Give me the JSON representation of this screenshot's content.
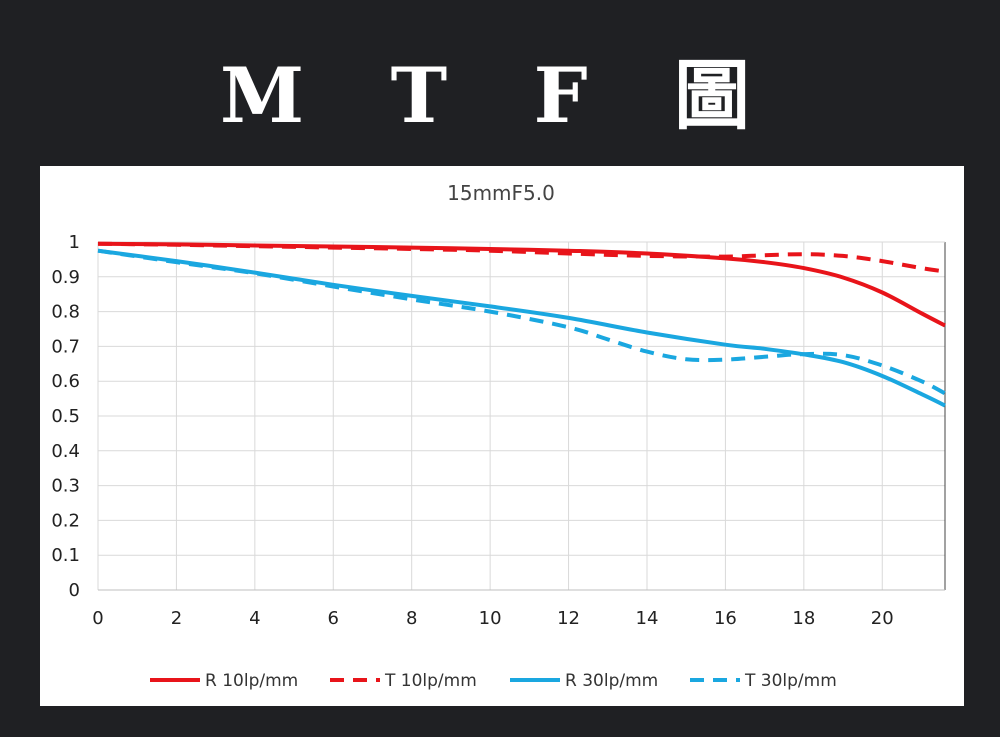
{
  "page": {
    "heading": "M T F 圖"
  },
  "chart_data": {
    "type": "line",
    "title": "15mmF5.0",
    "xlabel": "",
    "ylabel": "",
    "xlim": [
      0,
      21.6
    ],
    "ylim": [
      0,
      1
    ],
    "x_ticks": [
      0,
      2,
      4,
      6,
      8,
      10,
      12,
      14,
      16,
      18,
      20
    ],
    "y_ticks": [
      0,
      0.1,
      0.2,
      0.3,
      0.4,
      0.5,
      0.6,
      0.7,
      0.8,
      0.9,
      1
    ],
    "x_tick_labels": [
      "0",
      "2",
      "4",
      "6",
      "8",
      "10",
      "12",
      "14",
      "16",
      "18",
      "20"
    ],
    "y_tick_labels": [
      "0",
      "0.1",
      "0.2",
      "0.3",
      "0.4",
      "0.5",
      "0.6",
      "0.7",
      "0.8",
      "0.9",
      "1"
    ],
    "grid": true,
    "legend_position": "bottom",
    "series": [
      {
        "name": "R 10lp/mm",
        "color": "#e8141a",
        "dash": false,
        "x": [
          0,
          2,
          4,
          6,
          8,
          10,
          12,
          14,
          16,
          17,
          18,
          19,
          20,
          21,
          21.6
        ],
        "y": [
          0.995,
          0.993,
          0.99,
          0.987,
          0.984,
          0.98,
          0.975,
          0.967,
          0.953,
          0.942,
          0.925,
          0.898,
          0.855,
          0.795,
          0.76
        ]
      },
      {
        "name": "T 10lp/mm",
        "color": "#e8141a",
        "dash": true,
        "x": [
          0,
          2,
          4,
          6,
          8,
          10,
          12,
          14,
          16,
          17,
          18,
          19,
          20,
          21,
          21.6
        ],
        "y": [
          0.995,
          0.992,
          0.988,
          0.984,
          0.98,
          0.975,
          0.967,
          0.96,
          0.958,
          0.962,
          0.965,
          0.96,
          0.945,
          0.925,
          0.915
        ]
      },
      {
        "name": "R 30lp/mm",
        "color": "#1aa7e0",
        "dash": false,
        "x": [
          0,
          2,
          4,
          6,
          8,
          10,
          12,
          14,
          16,
          17,
          18,
          19,
          20,
          21,
          21.6
        ],
        "y": [
          0.975,
          0.945,
          0.912,
          0.877,
          0.845,
          0.815,
          0.782,
          0.74,
          0.705,
          0.693,
          0.677,
          0.655,
          0.615,
          0.563,
          0.53
        ]
      },
      {
        "name": "T 30lp/mm",
        "color": "#1aa7e0",
        "dash": true,
        "x": [
          0,
          2,
          4,
          6,
          8,
          10,
          12,
          13,
          14,
          15,
          16,
          17,
          18,
          19,
          20,
          21,
          21.6
        ],
        "y": [
          0.975,
          0.942,
          0.91,
          0.872,
          0.835,
          0.8,
          0.755,
          0.72,
          0.685,
          0.663,
          0.662,
          0.67,
          0.678,
          0.675,
          0.645,
          0.6,
          0.565
        ]
      }
    ]
  }
}
